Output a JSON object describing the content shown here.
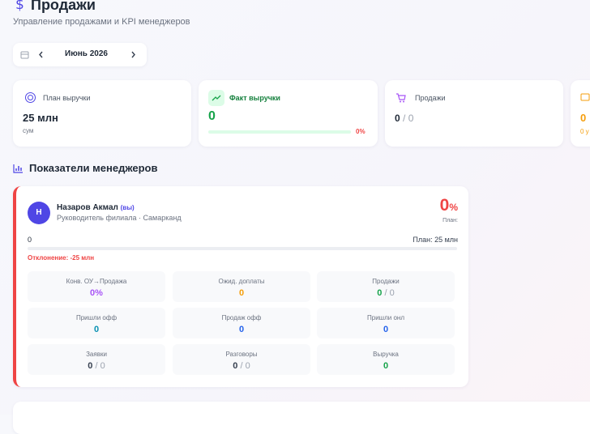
{
  "header": {
    "title": "Продажи",
    "subtitle": "Управление продажами и KPI менеджеров"
  },
  "period": {
    "month": "Июнь 2026"
  },
  "cards": [
    {
      "label": "План выручки",
      "value": "25 млн",
      "sub": "сум"
    },
    {
      "label": "Факт выручки",
      "value": "0",
      "percent": "0%"
    },
    {
      "label": "Продажи",
      "value": "0",
      "secondary": "/ 0"
    },
    {
      "value": "0",
      "sub": "0 у"
    }
  ],
  "section": {
    "title": "Показатели менеджеров"
  },
  "manager": {
    "initial": "Н",
    "name": "Назаров Акмал",
    "tag": "(вы)",
    "role": "Руководитель филиала · Самарканд",
    "percent_value": "0",
    "percent_unit": "%",
    "plan_label": "План:",
    "progress_left": "0",
    "progress_right": "План: 25 млн",
    "deviation": "Отклонение: -25 млн",
    "metrics": [
      {
        "label": "Конв. ОУ→Продажа",
        "value": "0%"
      },
      {
        "label": "Ожид. доплаты",
        "value": "0"
      },
      {
        "label": "Продажи",
        "value": "0",
        "secondary": "/ 0"
      },
      {
        "label": "Пришли офф",
        "value": "0"
      },
      {
        "label": "Продаж офф",
        "value": "0"
      },
      {
        "label": "Пришли онл",
        "value": "0"
      },
      {
        "label": "Заявки",
        "value": "0",
        "secondary": "/ 0"
      },
      {
        "label": "Разговоры",
        "value": "0",
        "secondary": "/ 0"
      },
      {
        "label": "Выручка",
        "value": "0"
      }
    ]
  }
}
